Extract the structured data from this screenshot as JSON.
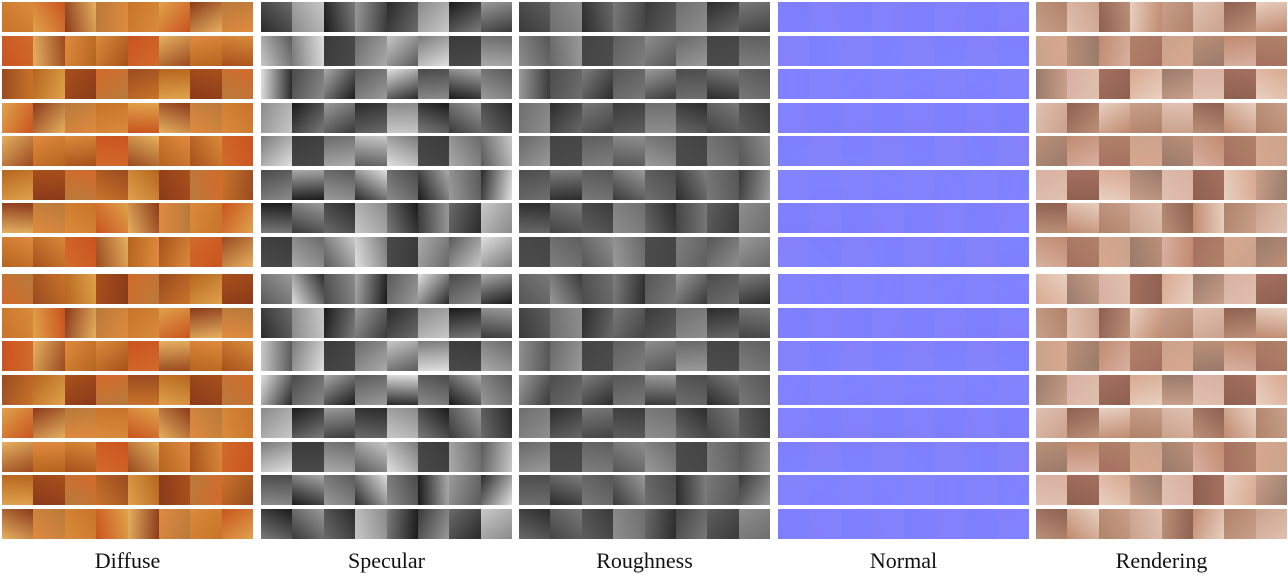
{
  "labels": {
    "diffuse": "Diffuse",
    "specular": "Specular",
    "roughness": "Roughness",
    "normal": "Normal",
    "rendering": "Rendering"
  },
  "palettes": {
    "diffuse": [
      "#c8732a",
      "#b5651d",
      "#d98b3a",
      "#e0a24c",
      "#a8501c",
      "#c9541e",
      "#8b3a1a",
      "#d36a2c",
      "#e6b060",
      "#b87a3a",
      "#9a4a20",
      "#e08a40"
    ],
    "specular": [
      "#2a2a2a",
      "#4a4a4a",
      "#6a6a6a",
      "#8a8a8a",
      "#aaaaaa",
      "#c8c8c8",
      "#1a1a1a",
      "#5a5a5a",
      "#7a7a7a",
      "#9a9a9a",
      "#e0e0e0",
      "#3a3a3a"
    ],
    "roughness": [
      "#3a3a3a",
      "#4c4c4c",
      "#5e5e5e",
      "#6e6e6e",
      "#7e7e7e",
      "#8e8e8e",
      "#2c2c2c",
      "#565656",
      "#686868",
      "#787878",
      "#9a9a9a",
      "#444444"
    ],
    "normal": [
      "#8080ff",
      "#8384fb",
      "#7d7ffc",
      "#8282fe",
      "#7f83ff",
      "#8580fa"
    ],
    "rendering": [
      "#c89f8a",
      "#d8b0a0",
      "#b0826a",
      "#e0c0b0",
      "#a67060",
      "#caa28c",
      "#8e6050",
      "#d8a890",
      "#bb9078",
      "#e8d0c0",
      "#9a7a6a",
      "#c08a70"
    ]
  }
}
